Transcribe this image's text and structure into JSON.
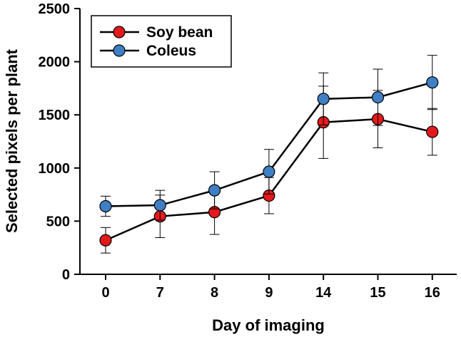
{
  "chart_data": {
    "type": "line",
    "title": "",
    "xlabel": "Day of imaging",
    "ylabel": "Selected pixels per plant",
    "categories": [
      "0",
      "7",
      "8",
      "9",
      "14",
      "15",
      "16"
    ],
    "ylim": [
      0,
      2500
    ],
    "yticks": [
      0,
      500,
      1000,
      1500,
      2000,
      2500
    ],
    "grid": false,
    "legend_position": "top-left",
    "series": [
      {
        "name": "Soy bean",
        "color": "#e31a1c",
        "values": [
          320,
          545,
          585,
          740,
          1430,
          1460,
          1340
        ],
        "error": [
          120,
          200,
          210,
          170,
          340,
          270,
          220
        ]
      },
      {
        "name": "Coleus",
        "color": "#3f7fc4",
        "values": [
          640,
          650,
          790,
          965,
          1650,
          1665,
          1805
        ],
        "error": [
          95,
          140,
          175,
          210,
          245,
          265,
          255
        ]
      }
    ]
  }
}
